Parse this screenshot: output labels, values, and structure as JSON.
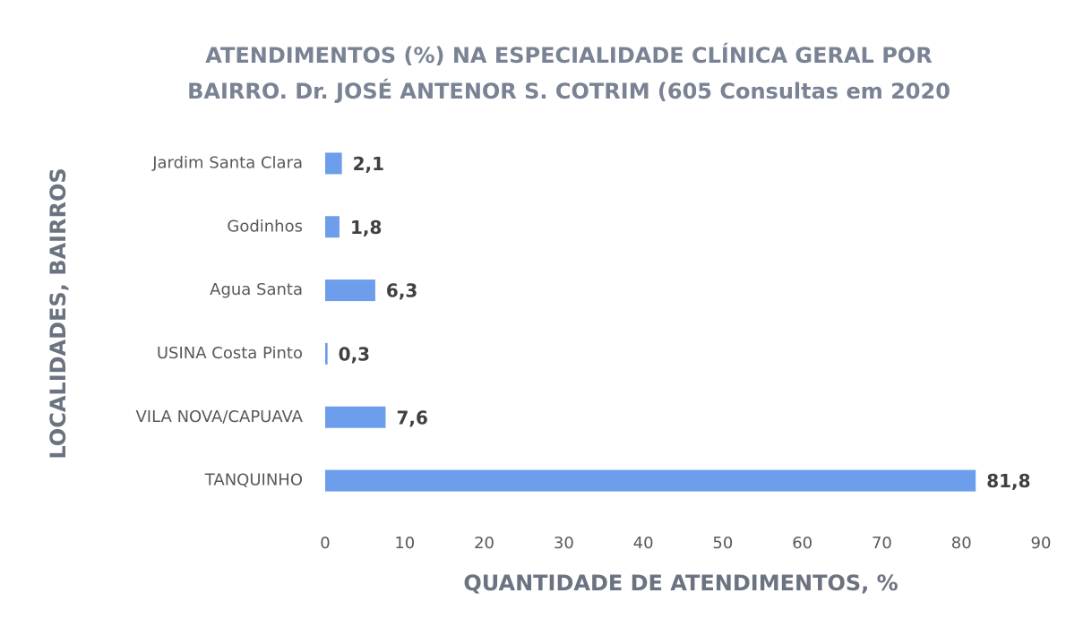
{
  "chart_data": {
    "type": "bar",
    "orientation": "horizontal",
    "title": [
      "ATENDIMENTOS (%) NA ESPECIALIDADE CLÍNICA GERAL POR",
      "BAIRRO.  Dr. JOSÉ ANTENOR S. COTRIM (605 Consultas em 2020"
    ],
    "categories": [
      "Jardim Santa Clara",
      "Godinhos",
      "Agua Santa",
      "USINA Costa Pinto",
      "VILA NOVA/CAPUAVA",
      "TANQUINHO"
    ],
    "values": [
      2.1,
      1.8,
      6.3,
      0.3,
      7.6,
      81.8
    ],
    "value_labels": [
      "2,1",
      "1,8",
      "6,3",
      "0,3",
      "7,6",
      "81,8"
    ],
    "color": "#6d9eeb",
    "xlim": [
      0,
      90
    ],
    "xticks": [
      0,
      10,
      20,
      30,
      40,
      50,
      60,
      70,
      80,
      90
    ],
    "xlabel": "QUANTIDADE DE ATENDIMENTOS, %",
    "ylabel": "LOCALIDADES,  BAIRROS",
    "grid": false
  }
}
